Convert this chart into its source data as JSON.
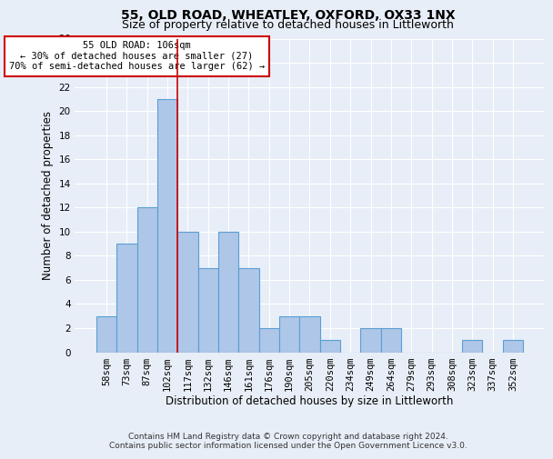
{
  "title": "55, OLD ROAD, WHEATLEY, OXFORD, OX33 1NX",
  "subtitle": "Size of property relative to detached houses in Littleworth",
  "xlabel": "Distribution of detached houses by size in Littleworth",
  "ylabel": "Number of detached properties",
  "bar_labels": [
    "58sqm",
    "73sqm",
    "87sqm",
    "102sqm",
    "117sqm",
    "132sqm",
    "146sqm",
    "161sqm",
    "176sqm",
    "190sqm",
    "205sqm",
    "220sqm",
    "234sqm",
    "249sqm",
    "264sqm",
    "279sqm",
    "293sqm",
    "308sqm",
    "323sqm",
    "337sqm",
    "352sqm"
  ],
  "bar_values": [
    3,
    9,
    12,
    21,
    10,
    7,
    10,
    7,
    2,
    3,
    3,
    1,
    0,
    2,
    2,
    0,
    0,
    0,
    1,
    0,
    1
  ],
  "bar_color": "#aec6e8",
  "bar_edge_color": "#5a9fd4",
  "subject_line_color": "#cc0000",
  "annotation_text": "55 OLD ROAD: 106sqm\n← 30% of detached houses are smaller (27)\n70% of semi-detached houses are larger (62) →",
  "annotation_box_color": "#ffffff",
  "annotation_box_edge": "#cc0000",
  "ylim": [
    0,
    26
  ],
  "yticks": [
    0,
    2,
    4,
    6,
    8,
    10,
    12,
    14,
    16,
    18,
    20,
    22,
    24,
    26
  ],
  "background_color": "#e8eef7",
  "grid_color": "#ffffff",
  "footer": "Contains HM Land Registry data © Crown copyright and database right 2024.\nContains public sector information licensed under the Open Government Licence v3.0.",
  "title_fontsize": 10,
  "subtitle_fontsize": 9,
  "xlabel_fontsize": 8.5,
  "ylabel_fontsize": 8.5,
  "tick_fontsize": 7.5,
  "annotation_fontsize": 7.5,
  "footer_fontsize": 6.5
}
